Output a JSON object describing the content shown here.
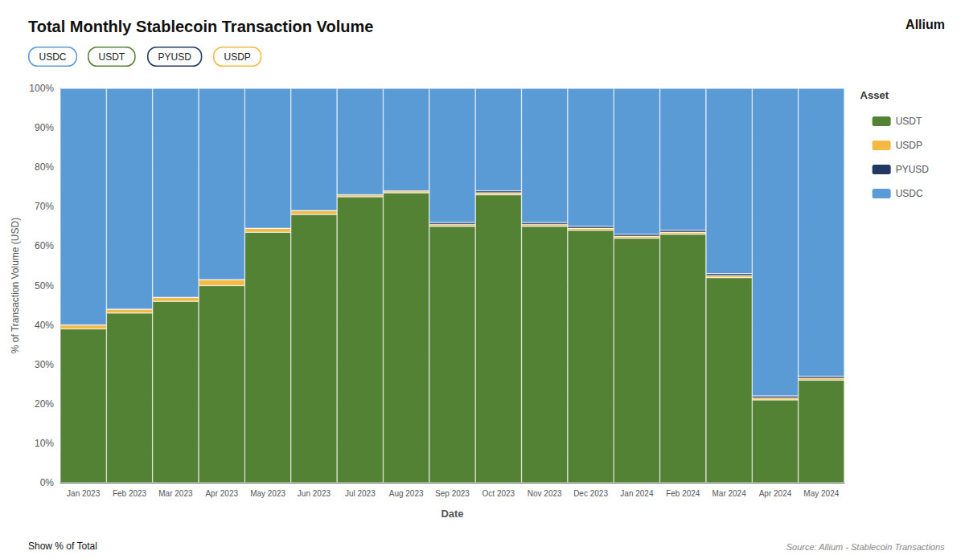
{
  "chart_data": {
    "type": "bar",
    "stacked": true,
    "title": "Total Monthly Stablecoin Transaction Volume",
    "x_label": "Date",
    "y_label": "% of Transaction Volume (USD)",
    "legend_title": "Asset",
    "tags": [
      "USDC",
      "USDT",
      "PYUSD",
      "USDP"
    ],
    "annotations": [
      "Allium",
      "Source: Allium - Stablecoin Transactions",
      "Show % of Total"
    ],
    "categories": [
      "Jan 2023",
      "Feb 2023",
      "Mar 2023",
      "Apr 2023",
      "May 2023",
      "Jun 2023",
      "Jul 2023",
      "Aug 2023",
      "Sep 2023",
      "Oct 2023",
      "Nov 2023",
      "Dec 2023",
      "Jan 2024",
      "Feb 2024",
      "Mar 2024",
      "Apr 2024",
      "May 2024"
    ],
    "series": [
      {
        "name": "USDT",
        "color": "#548235",
        "values": [
          39.0,
          43.0,
          46.0,
          50.0,
          63.5,
          68.0,
          72.5,
          73.5,
          65.0,
          73.0,
          65.0,
          64.0,
          62.0,
          63.0,
          52.0,
          21.0,
          26.0
        ]
      },
      {
        "name": "USDP",
        "color": "#f4b942",
        "values": [
          1.0,
          1.0,
          1.0,
          1.5,
          1.0,
          1.0,
          0.5,
          0.5,
          0.5,
          0.5,
          0.5,
          0.5,
          0.5,
          0.5,
          0.5,
          0.5,
          0.5
        ]
      },
      {
        "name": "PYUSD",
        "color": "#1f3864",
        "values": [
          0.0,
          0.0,
          0.0,
          0.0,
          0.0,
          0.0,
          0.0,
          0.0,
          0.5,
          0.5,
          0.5,
          0.5,
          0.5,
          0.5,
          0.5,
          0.5,
          0.5
        ]
      },
      {
        "name": "USDC",
        "color": "#5b9bd5",
        "values": [
          60.0,
          56.0,
          53.0,
          48.5,
          35.5,
          31.0,
          27.0,
          26.0,
          34.0,
          26.0,
          34.0,
          35.0,
          37.0,
          36.0,
          47.0,
          78.0,
          73.0
        ]
      }
    ],
    "ylim": [
      0,
      100
    ],
    "yticks": [
      {
        "value": 0,
        "label": "0%"
      },
      {
        "value": 10,
        "label": "10%"
      },
      {
        "value": 20,
        "label": "20%"
      },
      {
        "value": 30,
        "label": "30%"
      },
      {
        "value": 40,
        "label": "40%"
      },
      {
        "value": 50,
        "label": "50%"
      },
      {
        "value": 60,
        "label": "60%"
      },
      {
        "value": 70,
        "label": "70%"
      },
      {
        "value": 80,
        "label": "80%"
      },
      {
        "value": 90,
        "label": "90%"
      },
      {
        "value": 100,
        "label": "100%"
      }
    ],
    "grid": true,
    "legend": "right"
  }
}
